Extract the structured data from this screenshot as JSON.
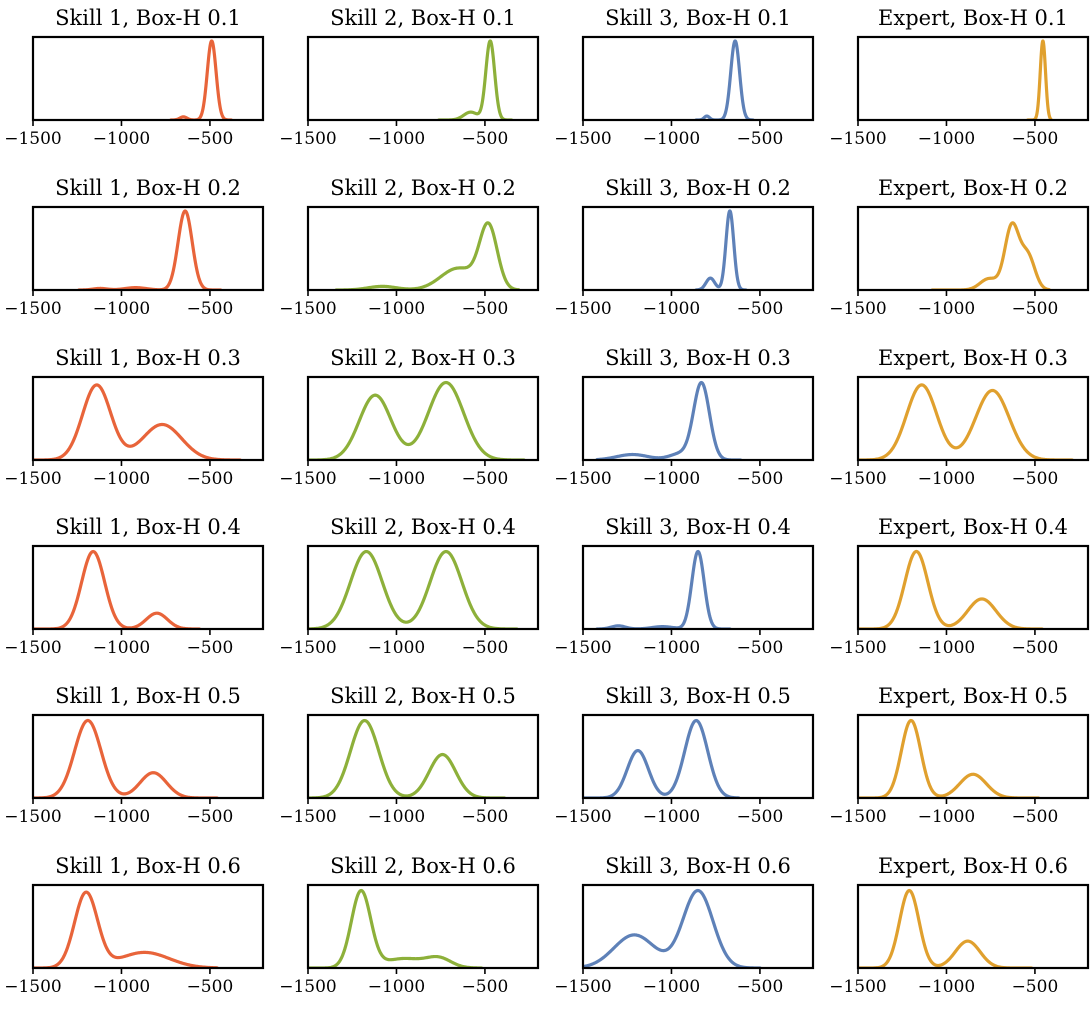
{
  "colors": {
    "Skill 1": "#E8643A",
    "Skill 2": "#8DB03A",
    "Skill 3": "#5E81B8",
    "Expert": "#E0A02E"
  },
  "chart_data": [
    {
      "type": "line",
      "title": "Skill 1, Box-H 0.1",
      "series": "Skill 1",
      "xlim": [
        -1500,
        -200
      ],
      "xticks": [
        "−1500",
        "−1000",
        "−500"
      ],
      "xtick_values": [
        -1500,
        -1000,
        -500
      ],
      "ylim": [
        0,
        1.05
      ],
      "components": [
        {
          "mu": -490,
          "sigma": 25,
          "w": 1.0
        },
        {
          "mu": -650,
          "sigma": 20,
          "w": 0.04
        }
      ],
      "support": [
        -720,
        -380
      ]
    },
    {
      "type": "line",
      "title": "Skill 2, Box-H 0.1",
      "series": "Skill 2",
      "xlim": [
        -1500,
        -200
      ],
      "xticks": [
        "−1500",
        "−1000",
        "−500"
      ],
      "xtick_values": [
        -1500,
        -1000,
        -500
      ],
      "ylim": [
        0,
        1.05
      ],
      "components": [
        {
          "mu": -470,
          "sigma": 25,
          "w": 1.0
        },
        {
          "mu": -580,
          "sigma": 40,
          "w": 0.1
        }
      ],
      "support": [
        -760,
        -350
      ]
    },
    {
      "type": "line",
      "title": "Skill 3, Box-H 0.1",
      "series": "Skill 3",
      "xlim": [
        -1500,
        -200
      ],
      "xticks": [
        "−1500",
        "−1000",
        "−500"
      ],
      "xtick_values": [
        -1500,
        -1000,
        -500
      ],
      "ylim": [
        0,
        1.05
      ],
      "components": [
        {
          "mu": -640,
          "sigma": 25,
          "w": 1.0
        },
        {
          "mu": -800,
          "sigma": 15,
          "w": 0.05
        }
      ],
      "support": [
        -860,
        -540
      ]
    },
    {
      "type": "line",
      "title": "Expert, Box-H 0.1",
      "series": "Expert",
      "xlim": [
        -1500,
        -200
      ],
      "xticks": [
        "−1500",
        "−1000",
        "−500"
      ],
      "xtick_values": [
        -1500,
        -1000,
        -500
      ],
      "ylim": [
        0,
        1.05
      ],
      "components": [
        {
          "mu": -455,
          "sigma": 15,
          "w": 1.0
        }
      ],
      "support": [
        -540,
        -410
      ]
    },
    {
      "type": "line",
      "title": "Skill 1, Box-H 0.2",
      "series": "Skill 1",
      "xlim": [
        -1500,
        -200
      ],
      "xticks": [
        "−1500",
        "−1000",
        "−500"
      ],
      "xtick_values": [
        -1500,
        -1000,
        -500
      ],
      "ylim": [
        0,
        1.05
      ],
      "components": [
        {
          "mu": -640,
          "sigma": 40,
          "w": 1.0
        },
        {
          "mu": -920,
          "sigma": 60,
          "w": 0.03
        },
        {
          "mu": -1120,
          "sigma": 40,
          "w": 0.02
        }
      ],
      "support": [
        -1240,
        -440
      ]
    },
    {
      "type": "line",
      "title": "Skill 2, Box-H 0.2",
      "series": "Skill 2",
      "xlim": [
        -1500,
        -200
      ],
      "xticks": [
        "−1500",
        "−1000",
        "−500"
      ],
      "xtick_values": [
        -1500,
        -1000,
        -500
      ],
      "ylim": [
        0,
        1.05
      ],
      "components": [
        {
          "mu": -480,
          "sigma": 50,
          "w": 0.85
        },
        {
          "mu": -650,
          "sigma": 100,
          "w": 0.3
        },
        {
          "mu": -1080,
          "sigma": 80,
          "w": 0.05
        }
      ],
      "support": [
        -1340,
        -310
      ]
    },
    {
      "type": "line",
      "title": "Skill 3, Box-H 0.2",
      "series": "Skill 3",
      "xlim": [
        -1500,
        -200
      ],
      "xticks": [
        "−1500",
        "−1000",
        "−500"
      ],
      "xtick_values": [
        -1500,
        -1000,
        -500
      ],
      "ylim": [
        0,
        1.05
      ],
      "components": [
        {
          "mu": -670,
          "sigma": 22,
          "w": 1.0
        },
        {
          "mu": -780,
          "sigma": 25,
          "w": 0.15
        }
      ],
      "support": [
        -860,
        -580
      ]
    },
    {
      "type": "line",
      "title": "Expert, Box-H 0.2",
      "series": "Expert",
      "xlim": [
        -1500,
        -200
      ],
      "xticks": [
        "−1500",
        "−1000",
        "−500"
      ],
      "xtick_values": [
        -1500,
        -1000,
        -500
      ],
      "ylim": [
        0,
        1.05
      ],
      "components": [
        {
          "mu": -630,
          "sigma": 40,
          "w": 0.85
        },
        {
          "mu": -540,
          "sigma": 40,
          "w": 0.45
        },
        {
          "mu": -760,
          "sigma": 50,
          "w": 0.15
        }
      ],
      "support": [
        -1080,
        -420
      ]
    },
    {
      "type": "line",
      "title": "Skill 1, Box-H 0.3",
      "series": "Skill 1",
      "xlim": [
        -1500,
        -200
      ],
      "xticks": [
        "−1500",
        "−1000",
        "−500"
      ],
      "xtick_values": [
        -1500,
        -1000,
        -500
      ],
      "ylim": [
        0,
        1.05
      ],
      "components": [
        {
          "mu": -1140,
          "sigma": 80,
          "w": 0.95
        },
        {
          "mu": -770,
          "sigma": 110,
          "w": 0.45
        }
      ],
      "support": [
        -1500,
        -330
      ]
    },
    {
      "type": "line",
      "title": "Skill 2, Box-H 0.3",
      "series": "Skill 2",
      "xlim": [
        -1500,
        -200
      ],
      "xticks": [
        "−1500",
        "−1000",
        "−500"
      ],
      "xtick_values": [
        -1500,
        -1000,
        -500
      ],
      "ylim": [
        0,
        1.05
      ],
      "components": [
        {
          "mu": -1120,
          "sigma": 90,
          "w": 0.82
        },
        {
          "mu": -720,
          "sigma": 100,
          "w": 0.98
        }
      ],
      "support": [
        -1500,
        -280
      ]
    },
    {
      "type": "line",
      "title": "Skill 3, Box-H 0.3",
      "series": "Skill 3",
      "xlim": [
        -1500,
        -200
      ],
      "xticks": [
        "−1500",
        "−1000",
        "−500"
      ],
      "xtick_values": [
        -1500,
        -1000,
        -500
      ],
      "ylim": [
        0,
        1.05
      ],
      "components": [
        {
          "mu": -830,
          "sigma": 45,
          "w": 0.98
        },
        {
          "mu": -1220,
          "sigma": 90,
          "w": 0.07
        },
        {
          "mu": -950,
          "sigma": 60,
          "w": 0.08
        }
      ],
      "support": [
        -1420,
        -610
      ]
    },
    {
      "type": "line",
      "title": "Expert, Box-H 0.3",
      "series": "Expert",
      "xlim": [
        -1500,
        -200
      ],
      "xticks": [
        "−1500",
        "−1000",
        "−500"
      ],
      "xtick_values": [
        -1500,
        -1000,
        -500
      ],
      "ylim": [
        0,
        1.05
      ],
      "components": [
        {
          "mu": -1140,
          "sigma": 85,
          "w": 0.95
        },
        {
          "mu": -740,
          "sigma": 95,
          "w": 0.88
        }
      ],
      "support": [
        -1500,
        -290
      ]
    },
    {
      "type": "line",
      "title": "Skill 1, Box-H 0.4",
      "series": "Skill 1",
      "xlim": [
        -1500,
        -200
      ],
      "xticks": [
        "−1500",
        "−1000",
        "−500"
      ],
      "xtick_values": [
        -1500,
        -1000,
        -500
      ],
      "ylim": [
        0,
        1.05
      ],
      "components": [
        {
          "mu": -1160,
          "sigma": 65,
          "w": 0.98
        },
        {
          "mu": -800,
          "sigma": 60,
          "w": 0.2
        }
      ],
      "support": [
        -1500,
        -560
      ]
    },
    {
      "type": "line",
      "title": "Skill 2, Box-H 0.4",
      "series": "Skill 2",
      "xlim": [
        -1500,
        -200
      ],
      "xticks": [
        "−1500",
        "−1000",
        "−500"
      ],
      "xtick_values": [
        -1500,
        -1000,
        -500
      ],
      "ylim": [
        0,
        1.05
      ],
      "components": [
        {
          "mu": -1170,
          "sigma": 90,
          "w": 0.98
        },
        {
          "mu": -720,
          "sigma": 90,
          "w": 0.98
        }
      ],
      "support": [
        -1500,
        -320
      ]
    },
    {
      "type": "line",
      "title": "Skill 3, Box-H 0.4",
      "series": "Skill 3",
      "xlim": [
        -1500,
        -200
      ],
      "xticks": [
        "−1500",
        "−1000",
        "−500"
      ],
      "xtick_values": [
        -1500,
        -1000,
        -500
      ],
      "ylim": [
        0,
        1.05
      ],
      "components": [
        {
          "mu": -850,
          "sigma": 35,
          "w": 0.98
        },
        {
          "mu": -1300,
          "sigma": 40,
          "w": 0.04
        },
        {
          "mu": -1050,
          "sigma": 60,
          "w": 0.03
        }
      ],
      "support": [
        -1420,
        -670
      ]
    },
    {
      "type": "line",
      "title": "Expert, Box-H 0.4",
      "series": "Expert",
      "xlim": [
        -1500,
        -200
      ],
      "xticks": [
        "−1500",
        "−1000",
        "−500"
      ],
      "xtick_values": [
        -1500,
        -1000,
        -500
      ],
      "ylim": [
        0,
        1.05
      ],
      "components": [
        {
          "mu": -1170,
          "sigma": 65,
          "w": 0.98
        },
        {
          "mu": -800,
          "sigma": 80,
          "w": 0.38
        }
      ],
      "support": [
        -1500,
        -460
      ]
    },
    {
      "type": "line",
      "title": "Skill 1, Box-H 0.5",
      "series": "Skill 1",
      "xlim": [
        -1500,
        -200
      ],
      "xticks": [
        "−1500",
        "−1000",
        "−500"
      ],
      "xtick_values": [
        -1500,
        -1000,
        -500
      ],
      "ylim": [
        0,
        1.05
      ],
      "components": [
        {
          "mu": -1190,
          "sigma": 75,
          "w": 0.98
        },
        {
          "mu": -820,
          "sigma": 75,
          "w": 0.32
        }
      ],
      "support": [
        -1500,
        -460
      ]
    },
    {
      "type": "line",
      "title": "Skill 2, Box-H 0.5",
      "series": "Skill 2",
      "xlim": [
        -1500,
        -200
      ],
      "xticks": [
        "−1500",
        "−1000",
        "−500"
      ],
      "xtick_values": [
        -1500,
        -1000,
        -500
      ],
      "ylim": [
        0,
        1.05
      ],
      "components": [
        {
          "mu": -1180,
          "sigma": 80,
          "w": 0.98
        },
        {
          "mu": -740,
          "sigma": 75,
          "w": 0.55
        }
      ],
      "support": [
        -1500,
        -390
      ]
    },
    {
      "type": "line",
      "title": "Skill 3, Box-H 0.5",
      "series": "Skill 3",
      "xlim": [
        -1500,
        -200
      ],
      "xticks": [
        "−1500",
        "−1000",
        "−500"
      ],
      "xtick_values": [
        -1500,
        -1000,
        -500
      ],
      "ylim": [
        0,
        1.05
      ],
      "components": [
        {
          "mu": -1190,
          "sigma": 60,
          "w": 0.6
        },
        {
          "mu": -860,
          "sigma": 65,
          "w": 0.98
        }
      ],
      "support": [
        -1500,
        -620
      ]
    },
    {
      "type": "line",
      "title": "Expert, Box-H 0.5",
      "series": "Expert",
      "xlim": [
        -1500,
        -200
      ],
      "xticks": [
        "−1500",
        "−1000",
        "−500"
      ],
      "xtick_values": [
        -1500,
        -1000,
        -500
      ],
      "ylim": [
        0,
        1.05
      ],
      "components": [
        {
          "mu": -1200,
          "sigma": 55,
          "w": 0.98
        },
        {
          "mu": -850,
          "sigma": 75,
          "w": 0.3
        }
      ],
      "support": [
        -1500,
        -480
      ]
    },
    {
      "type": "line",
      "title": "Skill 1, Box-H 0.6",
      "series": "Skill 1",
      "xlim": [
        -1500,
        -200
      ],
      "xticks": [
        "−1500",
        "−1000",
        "−500"
      ],
      "xtick_values": [
        -1500,
        -1000,
        -500
      ],
      "ylim": [
        0,
        1.05
      ],
      "components": [
        {
          "mu": -1200,
          "sigma": 65,
          "w": 0.96
        },
        {
          "mu": -870,
          "sigma": 140,
          "w": 0.2
        }
      ],
      "support": [
        -1500,
        -460
      ]
    },
    {
      "type": "line",
      "title": "Skill 2, Box-H 0.6",
      "series": "Skill 2",
      "xlim": [
        -1500,
        -200
      ],
      "xticks": [
        "−1500",
        "−1000",
        "−500"
      ],
      "xtick_values": [
        -1500,
        -1000,
        -500
      ],
      "ylim": [
        0,
        1.05
      ],
      "components": [
        {
          "mu": -1200,
          "sigma": 55,
          "w": 0.98
        },
        {
          "mu": -960,
          "sigma": 110,
          "w": 0.12
        },
        {
          "mu": -760,
          "sigma": 70,
          "w": 0.12
        }
      ],
      "support": [
        -1500,
        -520
      ]
    },
    {
      "type": "line",
      "title": "Skill 3, Box-H 0.6",
      "series": "Skill 3",
      "xlim": [
        -1500,
        -200
      ],
      "xticks": [
        "−1500",
        "−1000",
        "−500"
      ],
      "xtick_values": [
        -1500,
        -1000,
        -500
      ],
      "ylim": [
        0,
        1.05
      ],
      "components": [
        {
          "mu": -1210,
          "sigma": 115,
          "w": 0.42
        },
        {
          "mu": -850,
          "sigma": 85,
          "w": 0.98
        }
      ],
      "support": [
        -1500,
        -500
      ]
    },
    {
      "type": "line",
      "title": "Expert, Box-H 0.6",
      "series": "Expert",
      "xlim": [
        -1500,
        -200
      ],
      "xticks": [
        "−1500",
        "−1000",
        "−500"
      ],
      "xtick_values": [
        -1500,
        -1000,
        -500
      ],
      "ylim": [
        0,
        1.05
      ],
      "components": [
        {
          "mu": -1210,
          "sigma": 55,
          "w": 0.98
        },
        {
          "mu": -880,
          "sigma": 70,
          "w": 0.34
        }
      ],
      "support": [
        -1500,
        -520
      ]
    }
  ]
}
